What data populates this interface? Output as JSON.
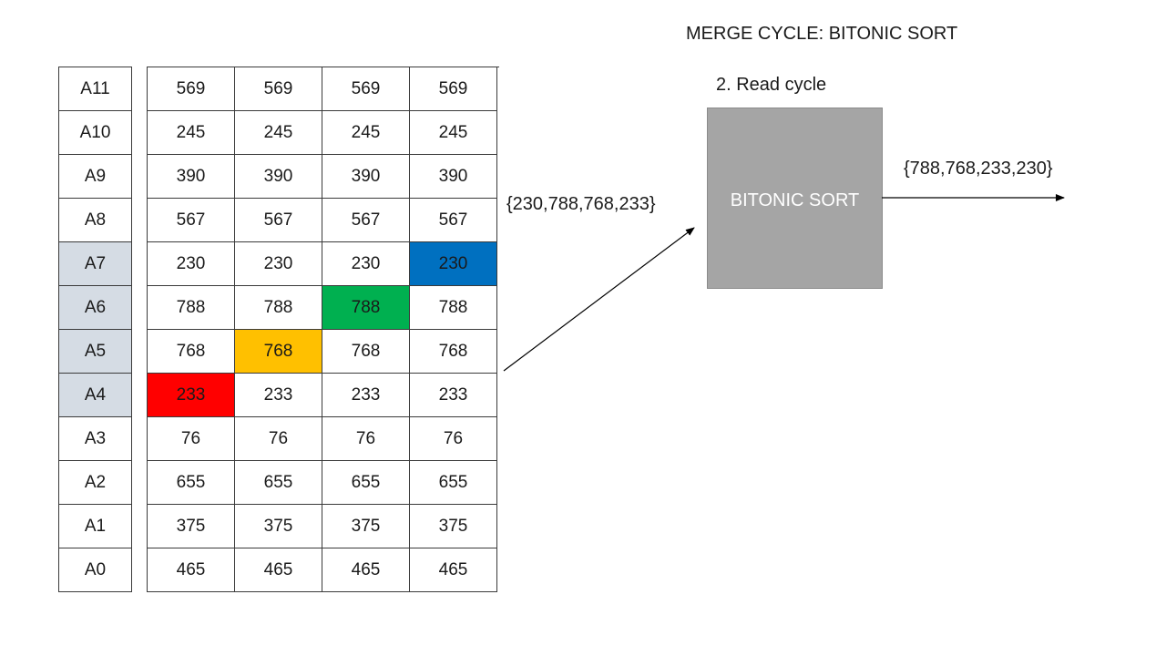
{
  "title": "MERGE CYCLE: BITONIC SORT",
  "addresses": [
    "A11",
    "A10",
    "A9",
    "A8",
    "A7",
    "A6",
    "A5",
    "A4",
    "A3",
    "A2",
    "A1",
    "A0"
  ],
  "rows": [
    [
      "569",
      "569",
      "569",
      "569"
    ],
    [
      "245",
      "245",
      "245",
      "245"
    ],
    [
      "390",
      "390",
      "390",
      "390"
    ],
    [
      "567",
      "567",
      "567",
      "567"
    ],
    [
      "230",
      "230",
      "230",
      "230"
    ],
    [
      "788",
      "788",
      "788",
      "788"
    ],
    [
      "768",
      "768",
      "768",
      "768"
    ],
    [
      "233",
      "233",
      "233",
      "233"
    ],
    [
      "76",
      "76",
      "76",
      "76"
    ],
    [
      "655",
      "655",
      "655",
      "655"
    ],
    [
      "375",
      "375",
      "375",
      "375"
    ],
    [
      "465",
      "465",
      "465",
      "465"
    ]
  ],
  "input_set": "{230,788,768,233}",
  "read_cycle_label": "2. Read cycle",
  "sort_box_label": "BITONIC SORT",
  "output_set": "{788,768,233,230}",
  "colors": {
    "address_highlight": "#d5dce4",
    "red": "#ff0000",
    "yellow": "#ffc000",
    "green": "#00b050",
    "blue": "#0070c0",
    "sort_box": "#a5a5a5"
  }
}
